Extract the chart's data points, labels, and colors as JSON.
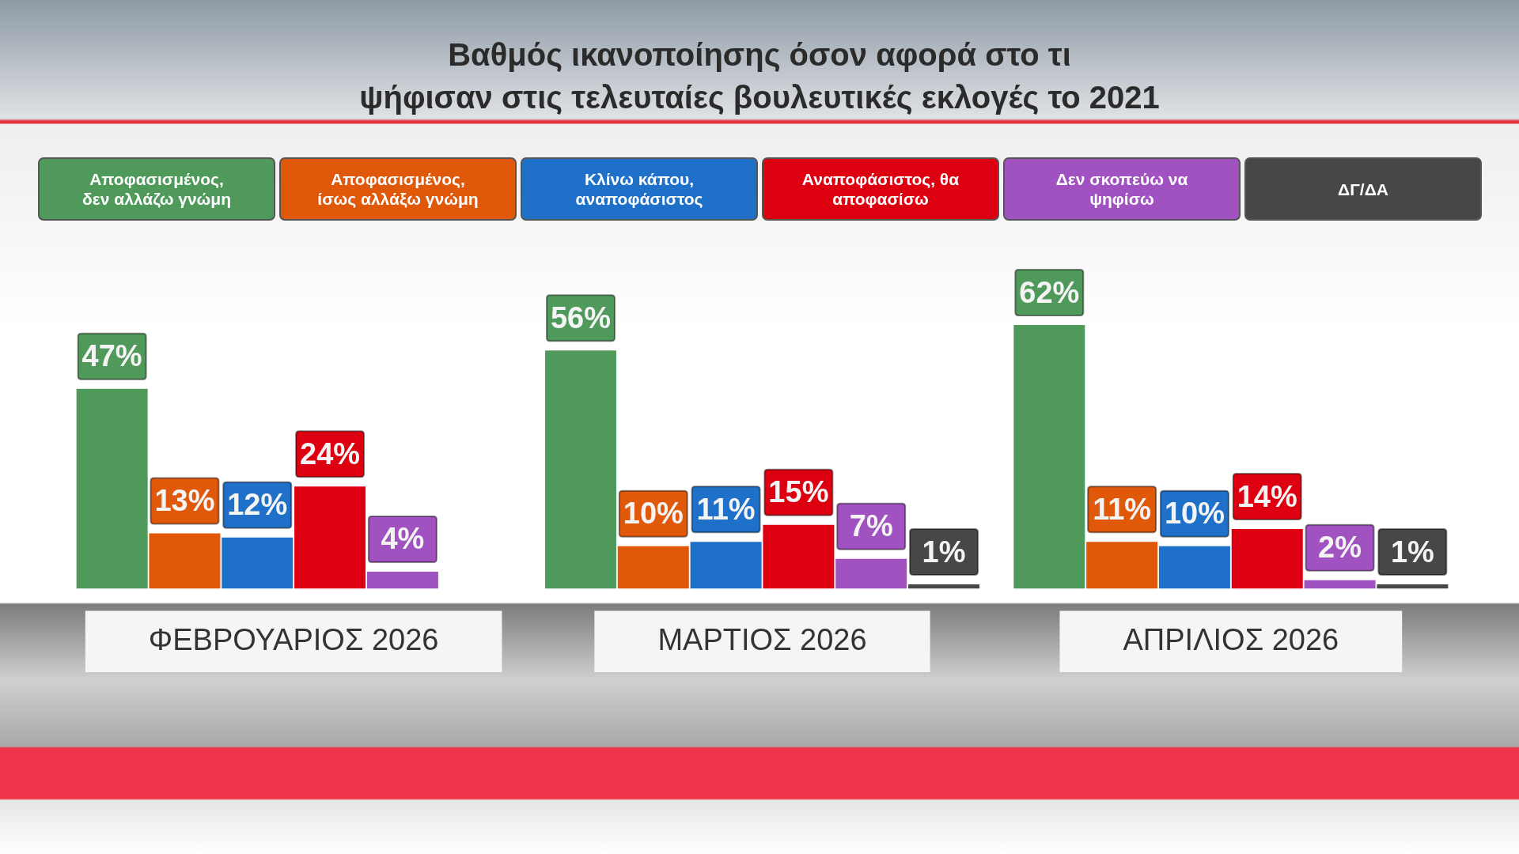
{
  "chart_data": {
    "type": "bar",
    "title": "Βαθμός ικανοποίησης όσον αφορά στο τι\nψήφισαν στις τελευταίες βουλευτικές εκλογές το 2021",
    "categories": [
      "ΦΕΒΡΟΥΑΡΙΟΣ 2026",
      "ΜΑΡΤΙΟΣ 2026",
      "ΑΠΡΙΛΙΟΣ 2026"
    ],
    "series": [
      {
        "name": "Αποφασισμένος, δεν αλλάζω γνώμη",
        "color": "#4f9a5a",
        "values": [
          47,
          56,
          62
        ],
        "value_labels": [
          "47%",
          "56%",
          "62%"
        ]
      },
      {
        "name": "Αποφασισμένος, ίσως αλλάξω γνώμη",
        "color": "#e0580a",
        "values": [
          13,
          10,
          11
        ],
        "value_labels": [
          "13%",
          "10%",
          "11%"
        ]
      },
      {
        "name": "Κλίνω κάπου, αναποφάσιστος",
        "color": "#1f70c8",
        "values": [
          12,
          11,
          10
        ],
        "value_labels": [
          "12%",
          "11%",
          "10%"
        ]
      },
      {
        "name": "Αναποφάσιστος, θα αποφασίσω",
        "color": "#dc0010",
        "values": [
          24,
          15,
          14
        ],
        "value_labels": [
          "24%",
          "15%",
          "14%"
        ]
      },
      {
        "name": "Δεν σκοπεύω να ψηφίσω",
        "color": "#a052c0",
        "values": [
          4,
          7,
          2
        ],
        "value_labels": [
          "4%",
          "7%",
          "2%"
        ]
      },
      {
        "name": "ΔΓ/ΔΑ",
        "color": "#474747",
        "values": [
          null,
          1,
          1
        ],
        "value_labels": [
          null,
          "1%",
          "1%"
        ]
      }
    ],
    "tick_labels": "x",
    "legend": "top"
  }
}
